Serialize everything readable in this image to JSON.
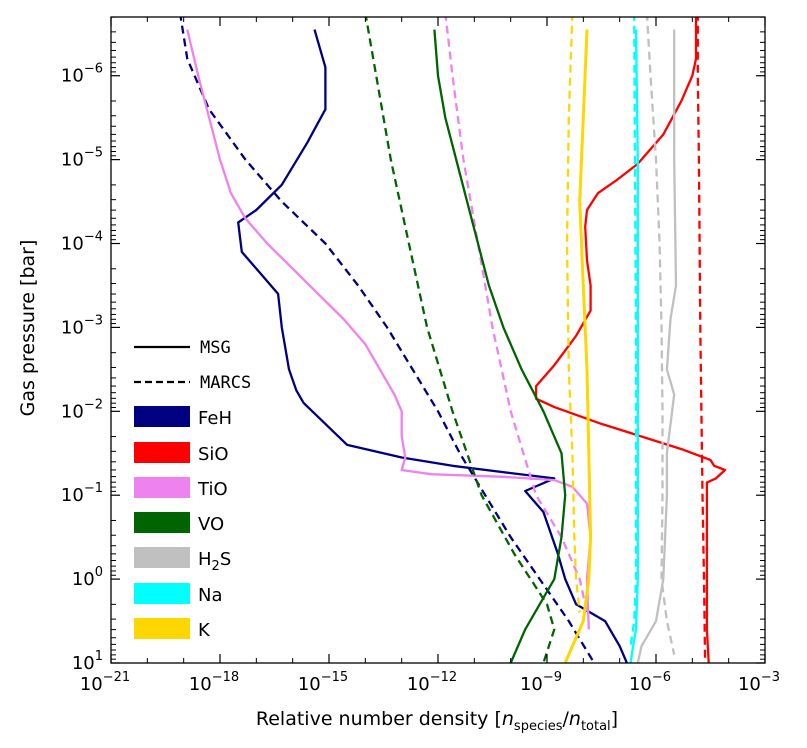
{
  "chart_data": {
    "type": "line",
    "xscale": "log",
    "yscale": "log",
    "y_inverted": true,
    "xlim_exp": [
      -21,
      -3
    ],
    "ylim_exp": [
      -6.7,
      1
    ],
    "xlabel": "Relative number density [n_species/n_total]",
    "xlabel_parts": {
      "prefix": "Relative number density [",
      "num": "n",
      "num_sub": "species",
      "slash": "/",
      "den": "n",
      "den_sub": "total",
      "suffix": "]"
    },
    "ylabel": "Gas pressure [bar]",
    "x_ticks": [
      {
        "base": "10",
        "exp": "−21",
        "e": -21
      },
      {
        "base": "10",
        "exp": "−18",
        "e": -18
      },
      {
        "base": "10",
        "exp": "−15",
        "e": -15
      },
      {
        "base": "10",
        "exp": "−12",
        "e": -12
      },
      {
        "base": "10",
        "exp": "−9",
        "e": -9
      },
      {
        "base": "10",
        "exp": "−6",
        "e": -6
      },
      {
        "base": "10",
        "exp": "−3",
        "e": -3
      }
    ],
    "y_ticks": [
      {
        "base": "10",
        "exp": "−6",
        "e": -6
      },
      {
        "base": "10",
        "exp": "−5",
        "e": -5
      },
      {
        "base": "10",
        "exp": "−4",
        "e": -4
      },
      {
        "base": "10",
        "exp": "−3",
        "e": -3
      },
      {
        "base": "10",
        "exp": "−2",
        "e": -2
      },
      {
        "base": "10",
        "exp": "−1",
        "e": -1
      },
      {
        "base": "10",
        "exp": "0",
        "e": 0
      },
      {
        "base": "10",
        "exp": "1",
        "e": 1
      }
    ],
    "legend_position": "lower-left",
    "legend_styles": [
      {
        "label": "MSG",
        "style": "solid"
      },
      {
        "label": "MARCS",
        "style": "dashed"
      }
    ],
    "legend_species": [
      {
        "label": "FeH",
        "color": "#000080"
      },
      {
        "label": "SiO",
        "color": "#ff0000"
      },
      {
        "label": "TiO",
        "color": "#ee82ee"
      },
      {
        "label": "VO",
        "color": "#006400"
      },
      {
        "label": "H",
        "sub": "2",
        "tail": "S",
        "color": "#c0c0c0"
      },
      {
        "label": "Na",
        "color": "#00ffff"
      },
      {
        "label": "K",
        "color": "#ffd700"
      }
    ],
    "series": [
      {
        "name": "FeH",
        "model": "MSG",
        "style": "solid",
        "color": "#000080",
        "points": [
          [
            -15.4,
            -6.55
          ],
          [
            -15.1,
            -6.1
          ],
          [
            -15.1,
            -5.6
          ],
          [
            -15.6,
            -5.2
          ],
          [
            -16.3,
            -4.7
          ],
          [
            -17,
            -4.4
          ],
          [
            -17.5,
            -4.25
          ],
          [
            -17.4,
            -3.9
          ],
          [
            -16.9,
            -3.65
          ],
          [
            -16.4,
            -3.4
          ],
          [
            -16.3,
            -3.0
          ],
          [
            -16.1,
            -2.5
          ],
          [
            -15.9,
            -2.25
          ],
          [
            -15.7,
            -2.1
          ],
          [
            -14.5,
            -1.6
          ],
          [
            -13,
            -1.45
          ],
          [
            -11.6,
            -1.35
          ],
          [
            -10.1,
            -1.27
          ],
          [
            -8.8,
            -1.2
          ],
          [
            -9.6,
            -1.05
          ],
          [
            -9.1,
            -0.8
          ],
          [
            -8.7,
            -0.3
          ],
          [
            -8.5,
            0.0
          ],
          [
            -8.2,
            0.3
          ],
          [
            -7.4,
            0.5
          ],
          [
            -7.0,
            0.8
          ],
          [
            -6.8,
            1.0
          ]
        ]
      },
      {
        "name": "FeH",
        "model": "MARCS",
        "style": "dashed",
        "color": "#000080",
        "points": [
          [
            -19.1,
            -6.75
          ],
          [
            -18.9,
            -6.2
          ],
          [
            -18.3,
            -5.6
          ],
          [
            -17.3,
            -5.0
          ],
          [
            -16.3,
            -4.5
          ],
          [
            -15.1,
            -4.0
          ],
          [
            -14.2,
            -3.5
          ],
          [
            -13.4,
            -3.0
          ],
          [
            -12.7,
            -2.5
          ],
          [
            -12.0,
            -2.0
          ],
          [
            -11.4,
            -1.5
          ],
          [
            -10.7,
            -1.0
          ],
          [
            -10.0,
            -0.5
          ],
          [
            -9.2,
            0.0
          ],
          [
            -8.4,
            0.5
          ],
          [
            -7.7,
            1.0
          ]
        ]
      },
      {
        "name": "SiO",
        "model": "MSG",
        "style": "solid",
        "color": "#ff0000",
        "points": [
          [
            -4.9,
            -6.75
          ],
          [
            -4.9,
            -6.4
          ],
          [
            -4.9,
            -6.2
          ],
          [
            -5.0,
            -6.0
          ],
          [
            -5.3,
            -5.7
          ],
          [
            -5.8,
            -5.3
          ],
          [
            -6.5,
            -4.95
          ],
          [
            -7.1,
            -4.75
          ],
          [
            -7.6,
            -4.6
          ],
          [
            -7.9,
            -4.4
          ],
          [
            -7.95,
            -4.2
          ],
          [
            -7.9,
            -3.8
          ],
          [
            -7.8,
            -3.5
          ],
          [
            -7.8,
            -3.2
          ],
          [
            -8.2,
            -2.9
          ],
          [
            -8.8,
            -2.55
          ],
          [
            -9.3,
            -2.3
          ],
          [
            -9.3,
            -2.15
          ],
          [
            -8.8,
            -2.05
          ],
          [
            -7.5,
            -1.85
          ],
          [
            -6.4,
            -1.7
          ],
          [
            -5.3,
            -1.55
          ],
          [
            -4.5,
            -1.42
          ],
          [
            -4.4,
            -1.35
          ],
          [
            -4.1,
            -1.3
          ],
          [
            -4.35,
            -1.2
          ],
          [
            -4.6,
            -1.15
          ],
          [
            -4.6,
            -0.8
          ],
          [
            -4.6,
            0.0
          ],
          [
            -4.6,
            0.6
          ],
          [
            -4.55,
            1.0
          ]
        ]
      },
      {
        "name": "SiO",
        "model": "MARCS",
        "style": "dashed",
        "color": "#ff0000",
        "points": [
          [
            -4.85,
            -6.75
          ],
          [
            -4.85,
            -6.0
          ],
          [
            -4.82,
            -5.0
          ],
          [
            -4.8,
            -4.0
          ],
          [
            -4.78,
            -3.0
          ],
          [
            -4.75,
            -2.0
          ],
          [
            -4.72,
            -1.0
          ],
          [
            -4.68,
            0.0
          ],
          [
            -4.65,
            1.0
          ]
        ]
      },
      {
        "name": "TiO",
        "model": "MSG",
        "style": "solid",
        "color": "#ee82ee",
        "points": [
          [
            -18.9,
            -6.55
          ],
          [
            -18.6,
            -6.0
          ],
          [
            -18.3,
            -5.5
          ],
          [
            -18.0,
            -5.0
          ],
          [
            -17.7,
            -4.6
          ],
          [
            -17.3,
            -4.3
          ],
          [
            -16.7,
            -4.0
          ],
          [
            -16.0,
            -3.7
          ],
          [
            -15.3,
            -3.4
          ],
          [
            -14.6,
            -3.1
          ],
          [
            -14.0,
            -2.8
          ],
          [
            -13.6,
            -2.5
          ],
          [
            -13.2,
            -2.2
          ],
          [
            -13.0,
            -2.0
          ],
          [
            -13.0,
            -1.7
          ],
          [
            -12.9,
            -1.45
          ],
          [
            -13.0,
            -1.3
          ],
          [
            -12.2,
            -1.25
          ],
          [
            -10.2,
            -1.22
          ],
          [
            -8.8,
            -1.18
          ],
          [
            -8.3,
            -1.1
          ],
          [
            -7.9,
            -0.9
          ],
          [
            -7.8,
            -0.5
          ],
          [
            -7.9,
            0.0
          ],
          [
            -7.85,
            0.6
          ]
        ]
      },
      {
        "name": "TiO",
        "model": "MARCS",
        "style": "dashed",
        "color": "#ee82ee",
        "points": [
          [
            -11.8,
            -6.75
          ],
          [
            -11.6,
            -6.0
          ],
          [
            -11.3,
            -5.0
          ],
          [
            -10.9,
            -4.0
          ],
          [
            -10.5,
            -3.0
          ],
          [
            -10.0,
            -2.0
          ],
          [
            -9.3,
            -1.0
          ],
          [
            -8.6,
            -0.5
          ],
          [
            -8.1,
            0.0
          ],
          [
            -7.9,
            0.4
          ]
        ]
      },
      {
        "name": "VO",
        "model": "MSG",
        "style": "solid",
        "color": "#006400",
        "points": [
          [
            -12.1,
            -6.55
          ],
          [
            -12.0,
            -6.0
          ],
          [
            -11.8,
            -5.5
          ],
          [
            -11.5,
            -5.0
          ],
          [
            -11.2,
            -4.5
          ],
          [
            -10.9,
            -4.0
          ],
          [
            -10.6,
            -3.5
          ],
          [
            -10.2,
            -3.0
          ],
          [
            -9.7,
            -2.5
          ],
          [
            -9.1,
            -2.0
          ],
          [
            -8.6,
            -1.5
          ],
          [
            -8.5,
            -1.0
          ],
          [
            -8.6,
            -0.5
          ],
          [
            -8.8,
            0.0
          ],
          [
            -9.2,
            0.3
          ],
          [
            -9.6,
            0.6
          ],
          [
            -10.0,
            1.0
          ]
        ]
      },
      {
        "name": "VO",
        "model": "MARCS",
        "style": "dashed",
        "color": "#006400",
        "points": [
          [
            -14.0,
            -6.75
          ],
          [
            -13.7,
            -6.0
          ],
          [
            -13.3,
            -5.0
          ],
          [
            -12.8,
            -4.0
          ],
          [
            -12.3,
            -3.0
          ],
          [
            -11.6,
            -2.0
          ],
          [
            -10.8,
            -1.0
          ],
          [
            -9.9,
            -0.3
          ],
          [
            -9.0,
            0.3
          ],
          [
            -8.8,
            0.6
          ],
          [
            -9.1,
            1.0
          ]
        ]
      },
      {
        "name": "H2S",
        "model": "MSG",
        "style": "solid",
        "color": "#c0c0c0",
        "points": [
          [
            -5.5,
            -6.55
          ],
          [
            -5.5,
            -5.0
          ],
          [
            -5.45,
            -3.5
          ],
          [
            -5.6,
            -3.1
          ],
          [
            -5.7,
            -2.5
          ],
          [
            -5.5,
            -2.2
          ],
          [
            -5.7,
            -1.5
          ],
          [
            -5.7,
            -1.0
          ],
          [
            -5.8,
            0.0
          ],
          [
            -6.0,
            0.5
          ],
          [
            -6.4,
            0.8
          ],
          [
            -6.5,
            1.0
          ]
        ]
      },
      {
        "name": "H2S",
        "model": "MARCS",
        "style": "dashed",
        "color": "#c0c0c0",
        "points": [
          [
            -6.25,
            -6.75
          ],
          [
            -6.15,
            -6.0
          ],
          [
            -6.0,
            -5.0
          ],
          [
            -5.9,
            -4.0
          ],
          [
            -5.85,
            -3.0
          ],
          [
            -5.82,
            -2.0
          ],
          [
            -5.82,
            -1.0
          ],
          [
            -5.85,
            0.0
          ],
          [
            -5.7,
            0.5
          ],
          [
            -5.5,
            0.9
          ]
        ]
      },
      {
        "name": "Na",
        "model": "MSG",
        "style": "solid",
        "color": "#00ffff",
        "points": [
          [
            -6.55,
            -6.55
          ],
          [
            -6.5,
            -5.0
          ],
          [
            -6.5,
            -3.0
          ],
          [
            -6.5,
            -1.0
          ],
          [
            -6.5,
            0.0
          ],
          [
            -6.55,
            0.6
          ],
          [
            -6.65,
            0.85
          ],
          [
            -6.7,
            1.0
          ]
        ]
      },
      {
        "name": "Na",
        "model": "MARCS",
        "style": "dashed",
        "color": "#00ffff",
        "points": [
          [
            -6.6,
            -6.75
          ],
          [
            -6.58,
            -5.0
          ],
          [
            -6.55,
            -3.0
          ],
          [
            -6.55,
            -1.0
          ],
          [
            -6.55,
            0.0
          ],
          [
            -6.6,
            0.5
          ],
          [
            -6.7,
            0.8
          ]
        ]
      },
      {
        "name": "K",
        "model": "MSG",
        "style": "solid",
        "color": "#ffd700",
        "points": [
          [
            -7.9,
            -6.55
          ],
          [
            -8.0,
            -5.5
          ],
          [
            -8.1,
            -4.5
          ],
          [
            -8.0,
            -3.5
          ],
          [
            -7.9,
            -2.5
          ],
          [
            -7.85,
            -1.5
          ],
          [
            -7.8,
            -0.5
          ],
          [
            -7.85,
            0.0
          ],
          [
            -8.0,
            0.5
          ],
          [
            -8.3,
            0.8
          ],
          [
            -8.5,
            1.0
          ]
        ]
      },
      {
        "name": "K",
        "model": "MARCS",
        "style": "dashed",
        "color": "#ffd700",
        "points": [
          [
            -8.3,
            -6.75
          ],
          [
            -8.4,
            -5.5
          ],
          [
            -8.45,
            -4.0
          ],
          [
            -8.4,
            -2.5
          ],
          [
            -8.3,
            -1.5
          ],
          [
            -8.25,
            -0.5
          ],
          [
            -8.2,
            0.0
          ],
          [
            -8.1,
            0.4
          ]
        ]
      }
    ]
  }
}
